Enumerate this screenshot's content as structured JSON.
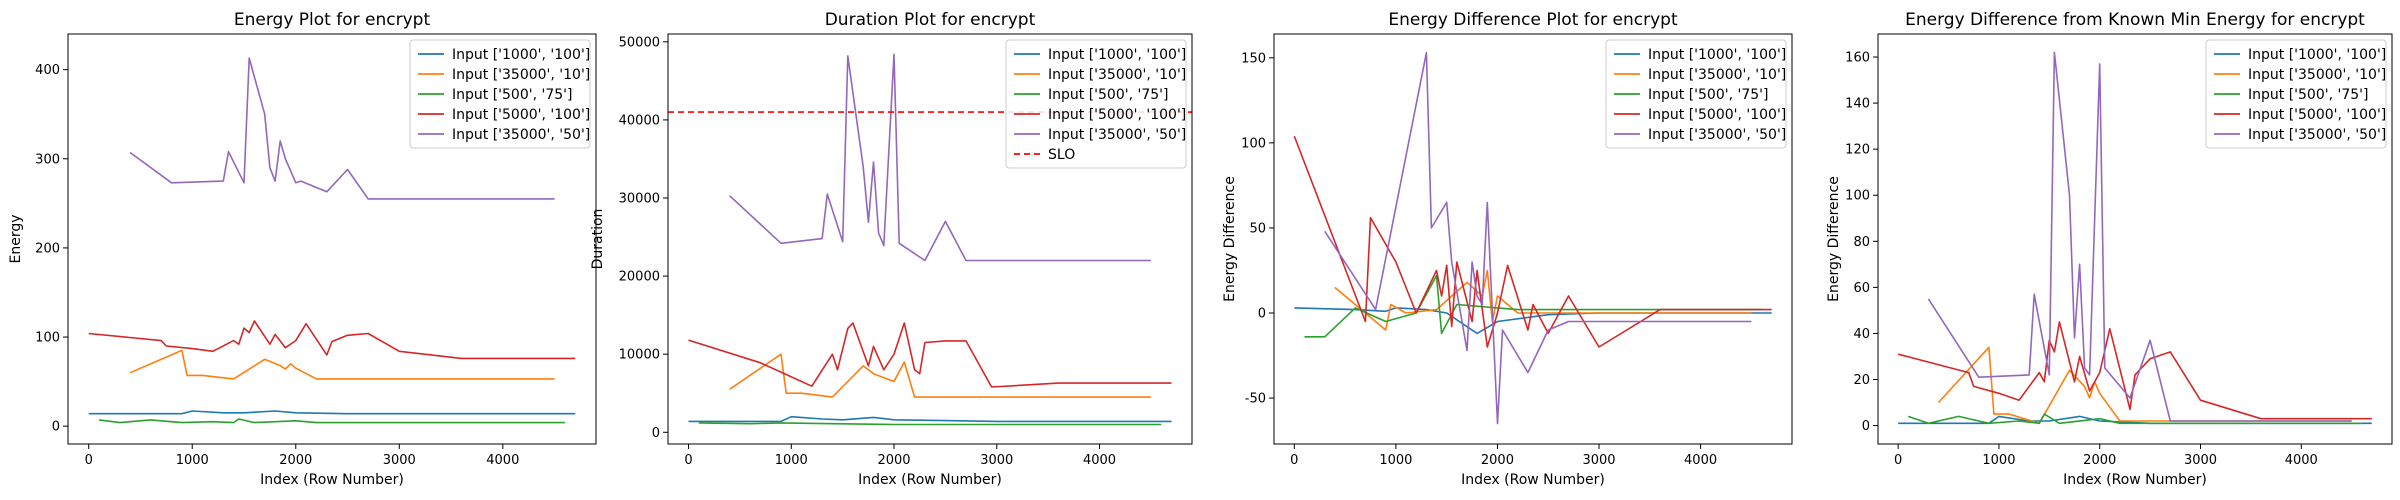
{
  "chart_data": [
    {
      "type": "line",
      "title": "Energy Plot for encrypt",
      "xlabel": "Index (Row Number)",
      "ylabel": "Energy",
      "xlim": [
        -200,
        4900
      ],
      "ylim": [
        -20,
        440
      ],
      "xticks": [
        0,
        1000,
        2000,
        3000,
        4000
      ],
      "yticks": [
        0,
        100,
        200,
        300,
        400
      ],
      "legend_loc": "upper right",
      "series": [
        {
          "name": "Input ['1000', '100']",
          "color": "#1f77b4",
          "x": [
            0,
            600,
            900,
            1000,
            1300,
            1500,
            1800,
            2000,
            2500,
            3000,
            4700
          ],
          "y": [
            14,
            14,
            14,
            17,
            15,
            15,
            17,
            15,
            14,
            14,
            14
          ]
        },
        {
          "name": "Input ['35000', '10']",
          "color": "#ff7f0e",
          "x": [
            400,
            900,
            950,
            1100,
            1400,
            1700,
            1850,
            1900,
            1950,
            2000,
            2200,
            4500
          ],
          "y": [
            60,
            85,
            57,
            57,
            53,
            75,
            68,
            64,
            70,
            65,
            53,
            53
          ]
        },
        {
          "name": "Input ['500', '75']",
          "color": "#2ca02c",
          "x": [
            100,
            300,
            600,
            900,
            1200,
            1400,
            1450,
            1600,
            2000,
            2200,
            4600
          ],
          "y": [
            7,
            4,
            7,
            4,
            5,
            4,
            8,
            4,
            6,
            4,
            4
          ]
        },
        {
          "name": "Input ['5000', '100']",
          "color": "#d62728",
          "x": [
            0,
            700,
            750,
            1000,
            1200,
            1400,
            1450,
            1500,
            1550,
            1600,
            1750,
            1800,
            1900,
            2000,
            2100,
            2300,
            2350,
            2500,
            2700,
            3000,
            3600,
            4700
          ],
          "y": [
            104,
            96,
            90,
            87,
            84,
            96,
            92,
            110,
            105,
            118,
            92,
            103,
            88,
            96,
            115,
            80,
            95,
            102,
            104,
            84,
            76,
            76
          ]
        },
        {
          "name": "Input ['35000', '50']",
          "color": "#9467bd",
          "x": [
            400,
            800,
            1300,
            1350,
            1500,
            1550,
            1700,
            1750,
            1800,
            1850,
            1900,
            2000,
            2050,
            2300,
            2500,
            2700,
            4500
          ],
          "y": [
            307,
            273,
            275,
            308,
            273,
            413,
            350,
            290,
            275,
            320,
            300,
            273,
            275,
            263,
            288,
            255,
            255
          ]
        }
      ]
    },
    {
      "type": "line",
      "title": "Duration Plot for encrypt",
      "xlabel": "Index (Row Number)",
      "ylabel": "Duration",
      "xlim": [
        -200,
        4900
      ],
      "ylim": [
        -1500,
        51000
      ],
      "xticks": [
        0,
        1000,
        2000,
        3000,
        4000
      ],
      "yticks": [
        0,
        10000,
        20000,
        30000,
        40000,
        50000
      ],
      "legend_loc": "upper right",
      "slo": {
        "name": "SLO",
        "value": 41000,
        "color": "#ff0000"
      },
      "series": [
        {
          "name": "Input ['1000', '100']",
          "color": "#1f77b4",
          "x": [
            0,
            900,
            1000,
            1300,
            1500,
            1800,
            2000,
            2500,
            3000,
            4700
          ],
          "y": [
            1400,
            1400,
            2000,
            1700,
            1600,
            1900,
            1600,
            1500,
            1400,
            1400
          ]
        },
        {
          "name": "Input ['35000', '10']",
          "color": "#ff7f0e",
          "x": [
            400,
            900,
            950,
            1100,
            1400,
            1700,
            1800,
            2000,
            2100,
            2200,
            4500
          ],
          "y": [
            5500,
            10000,
            5000,
            5000,
            4500,
            8500,
            7500,
            6500,
            9000,
            4500,
            4500
          ]
        },
        {
          "name": "Input ['500', '75']",
          "color": "#2ca02c",
          "x": [
            100,
            600,
            900,
            1400,
            2000,
            4600
          ],
          "y": [
            1200,
            1100,
            1200,
            1100,
            1000,
            1000
          ]
        },
        {
          "name": "Input ['5000', '100']",
          "color": "#d62728",
          "x": [
            0,
            700,
            1200,
            1400,
            1450,
            1550,
            1600,
            1750,
            1800,
            1900,
            2000,
            2100,
            2200,
            2250,
            2300,
            2500,
            2700,
            2950,
            3600,
            4700
          ],
          "y": [
            11800,
            8900,
            5900,
            10000,
            8000,
            13300,
            14000,
            8500,
            11000,
            8000,
            10000,
            14000,
            8000,
            7500,
            11500,
            11700,
            11700,
            5800,
            6300,
            6300
          ]
        },
        {
          "name": "Input ['35000', '50']",
          "color": "#9467bd",
          "x": [
            400,
            900,
            1300,
            1350,
            1500,
            1550,
            1700,
            1750,
            1800,
            1850,
            1900,
            2000,
            2050,
            2300,
            2500,
            2700,
            4500
          ],
          "y": [
            30300,
            24200,
            24800,
            30500,
            24400,
            48200,
            34000,
            26900,
            34600,
            25500,
            23900,
            48400,
            24200,
            22000,
            27000,
            22000,
            22000
          ]
        }
      ]
    },
    {
      "type": "line",
      "title": "Energy Difference Plot for encrypt",
      "xlabel": "Index (Row Number)",
      "ylabel": "Energy Difference",
      "xlim": [
        -200,
        4900
      ],
      "ylim": [
        -77,
        164
      ],
      "xticks": [
        0,
        1000,
        2000,
        3000,
        4000
      ],
      "yticks": [
        -50,
        0,
        50,
        100,
        150
      ],
      "legend_loc": "upper right",
      "series": [
        {
          "name": "Input ['1000', '100']",
          "color": "#1f77b4",
          "x": [
            0,
            600,
            900,
            1000,
            1300,
            1500,
            1800,
            2000,
            2500,
            3000,
            4700
          ],
          "y": [
            3,
            2,
            1,
            3,
            2,
            0,
            -12,
            -5,
            -1,
            0,
            0
          ]
        },
        {
          "name": "Input ['35000', '10']",
          "color": "#ff7f0e",
          "x": [
            400,
            900,
            950,
            1100,
            1400,
            1700,
            1850,
            1900,
            1950,
            2000,
            2200,
            4500
          ],
          "y": [
            15,
            -10,
            5,
            0,
            2,
            18,
            10,
            25,
            -5,
            10,
            0,
            0
          ]
        },
        {
          "name": "Input ['500', '75']",
          "color": "#2ca02c",
          "x": [
            100,
            300,
            600,
            900,
            1200,
            1400,
            1450,
            1600,
            2000,
            2200,
            4600
          ],
          "y": [
            -14,
            -14,
            3,
            -5,
            0,
            22,
            -12,
            5,
            3,
            2,
            2
          ]
        },
        {
          "name": "Input ['5000', '100']",
          "color": "#d62728",
          "x": [
            0,
            700,
            750,
            1000,
            1200,
            1400,
            1450,
            1500,
            1550,
            1600,
            1750,
            1800,
            1900,
            2000,
            2100,
            2300,
            2350,
            2500,
            2700,
            3000,
            3600,
            4700
          ],
          "y": [
            104,
            -5,
            56,
            30,
            0,
            25,
            10,
            28,
            -8,
            30,
            -5,
            25,
            -20,
            0,
            28,
            -10,
            5,
            -12,
            10,
            -20,
            2,
            2
          ]
        },
        {
          "name": "Input ['35000', '50']",
          "color": "#9467bd",
          "x": [
            300,
            800,
            1300,
            1350,
            1500,
            1550,
            1700,
            1750,
            1800,
            1850,
            1900,
            2000,
            2050,
            2300,
            2500,
            2700,
            4500
          ],
          "y": [
            48,
            2,
            153,
            50,
            65,
            30,
            -22,
            30,
            10,
            5,
            65,
            -65,
            -10,
            -35,
            -10,
            -5,
            -5
          ]
        }
      ]
    },
    {
      "type": "line",
      "title": "Energy Difference from Known Min Energy for encrypt",
      "xlabel": "Index (Row Number)",
      "ylabel": "Energy Difference",
      "xlim": [
        -200,
        4900
      ],
      "ylim": [
        -8,
        170
      ],
      "xticks": [
        0,
        1000,
        2000,
        3000,
        4000
      ],
      "yticks": [
        0,
        20,
        40,
        60,
        80,
        100,
        120,
        140,
        160
      ],
      "legend_loc": "upper right",
      "series": [
        {
          "name": "Input ['1000', '100']",
          "color": "#1f77b4",
          "x": [
            0,
            600,
            900,
            1000,
            1300,
            1500,
            1800,
            2000,
            2500,
            3000,
            4700
          ],
          "y": [
            1,
            1,
            1,
            4,
            2,
            2,
            4,
            2,
            1,
            1,
            1
          ]
        },
        {
          "name": "Input ['35000', '10']",
          "color": "#ff7f0e",
          "x": [
            400,
            900,
            950,
            1100,
            1400,
            1700,
            1850,
            1900,
            1950,
            2000,
            2200,
            4500
          ],
          "y": [
            10,
            34,
            5,
            5,
            1,
            24,
            17,
            12,
            19,
            14,
            2,
            2
          ]
        },
        {
          "name": "Input ['500', '75']",
          "color": "#2ca02c",
          "x": [
            100,
            300,
            600,
            900,
            1200,
            1400,
            1450,
            1600,
            2000,
            2200,
            4600
          ],
          "y": [
            4,
            1,
            4,
            1,
            2,
            1,
            5,
            1,
            3,
            1,
            1
          ]
        },
        {
          "name": "Input ['5000', '100']",
          "color": "#d62728",
          "x": [
            0,
            700,
            750,
            1000,
            1200,
            1400,
            1450,
            1500,
            1550,
            1600,
            1750,
            1800,
            1900,
            2000,
            2100,
            2300,
            2350,
            2500,
            2700,
            3000,
            3600,
            4700
          ],
          "y": [
            31,
            23,
            17,
            14,
            11,
            23,
            19,
            37,
            32,
            45,
            19,
            30,
            15,
            23,
            42,
            7,
            22,
            29,
            32,
            11,
            3,
            3
          ]
        },
        {
          "name": "Input ['35000', '50']",
          "color": "#9467bd",
          "x": [
            300,
            800,
            1300,
            1350,
            1500,
            1550,
            1700,
            1750,
            1800,
            1850,
            1900,
            2000,
            2050,
            2300,
            2500,
            2700,
            4500
          ],
          "y": [
            55,
            21,
            22,
            57,
            22,
            162,
            100,
            38,
            70,
            25,
            22,
            157,
            25,
            12,
            37,
            2,
            2
          ]
        }
      ]
    }
  ]
}
